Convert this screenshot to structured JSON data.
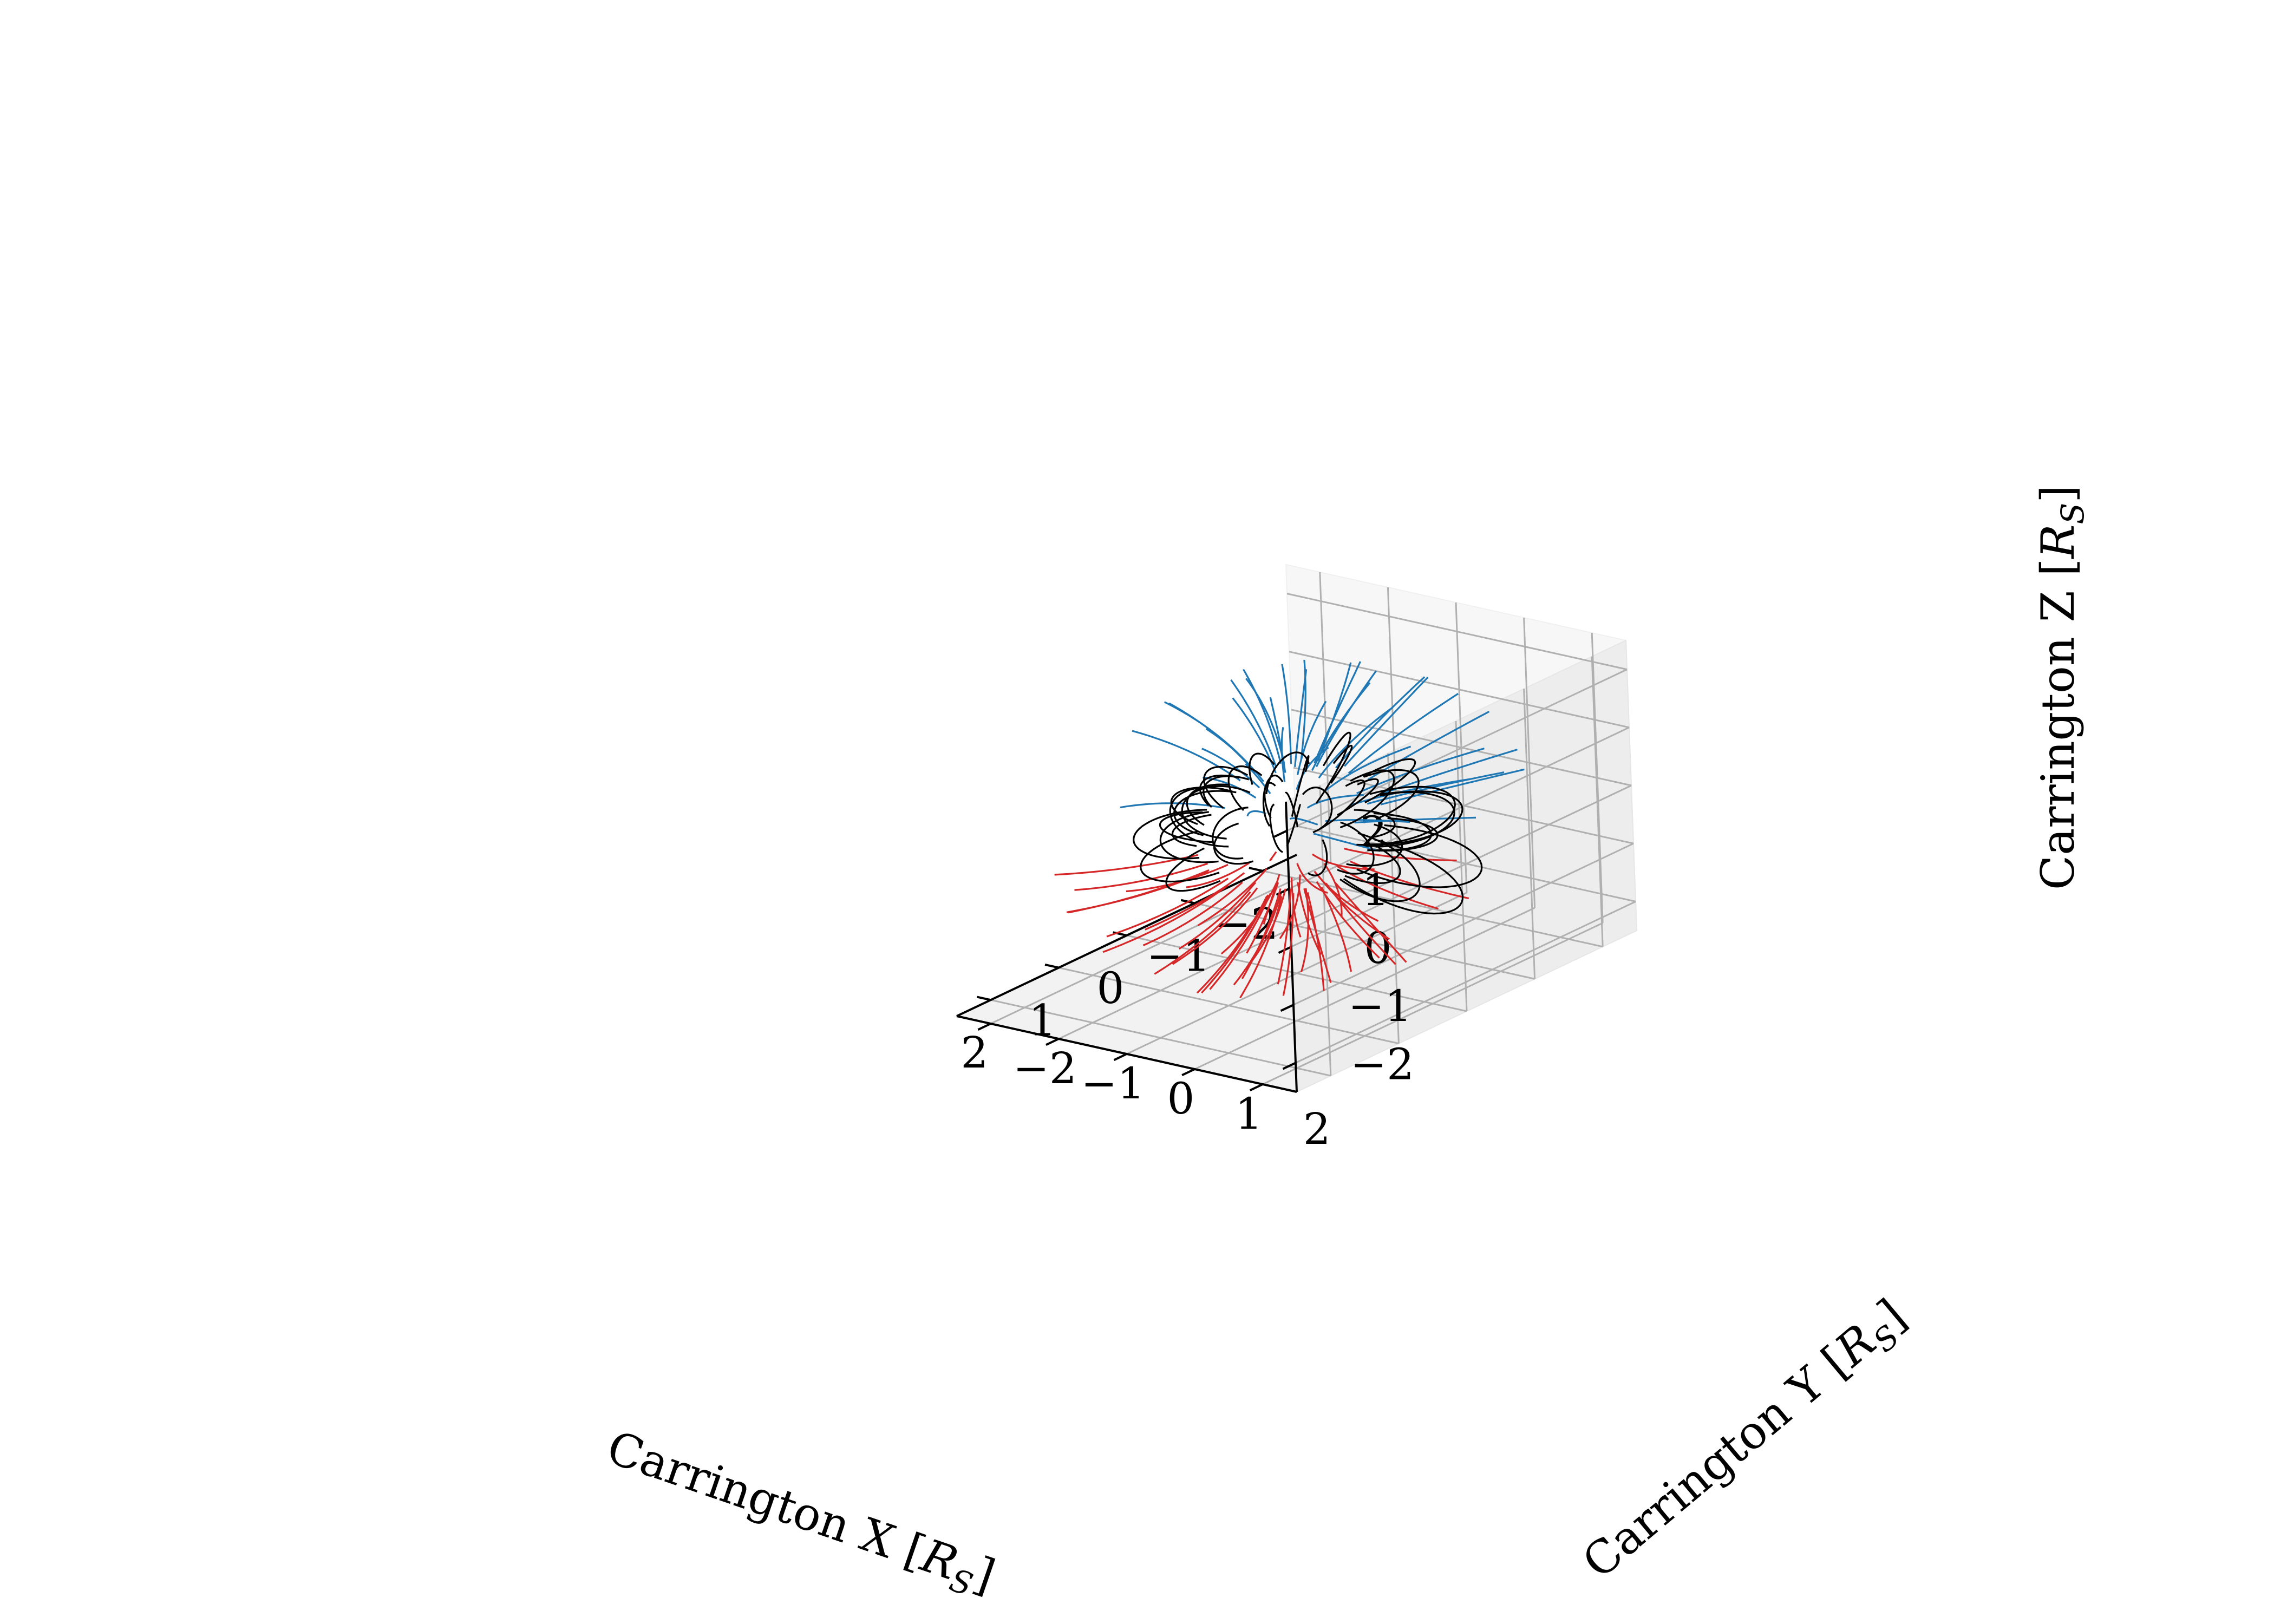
{
  "chart_data": {
    "type": "line3d",
    "title": "",
    "xlabel": "Carrington X [R_S]",
    "ylabel": "Carrington Y [R_S]",
    "zlabel": "Carrington Z [R_S]",
    "xlabel_parts": {
      "prefix": "Carrington X [",
      "sym": "R",
      "sub": "S",
      "suffix": "]"
    },
    "ylabel_parts": {
      "prefix": "Carrington Y [",
      "sym": "R",
      "sub": "S",
      "suffix": "]"
    },
    "zlabel_parts": {
      "prefix": "Carrington Z [",
      "sym": "R",
      "sub": "S",
      "suffix": "]"
    },
    "xlim": [
      -2.5,
      2.5
    ],
    "ylim": [
      -2.5,
      2.5
    ],
    "zlim": [
      -2.5,
      2.5
    ],
    "xticks": [
      -2,
      -1,
      0,
      1,
      2
    ],
    "yticks": [
      -2,
      -1,
      0,
      1,
      2
    ],
    "zticks": [
      -2,
      -1,
      0,
      1,
      2
    ],
    "xtick_labels": [
      "−2",
      "−1",
      "0",
      "1",
      "2"
    ],
    "ytick_labels": [
      "−2",
      "−1",
      "0",
      "1",
      "2"
    ],
    "ztick_labels": [
      "−2",
      "−1",
      "0",
      "1",
      "2"
    ],
    "grid": true,
    "legend": "none",
    "series_colors": {
      "open_positive": "#1f77b4",
      "open_negative": "#d62728",
      "closed": "#000000"
    },
    "source_surface_radius": 2.5,
    "solar_radius": 1.0,
    "open_positive_footpoints": [
      {
        "lat": 62,
        "lon": -150
      },
      {
        "lat": 70,
        "lon": -120
      },
      {
        "lat": 78,
        "lon": -95
      },
      {
        "lat": 66,
        "lon": -75
      },
      {
        "lat": 82,
        "lon": -40
      },
      {
        "lat": 72,
        "lon": -15
      },
      {
        "lat": 86,
        "lon": 10
      },
      {
        "lat": 74,
        "lon": 35
      },
      {
        "lat": 64,
        "lon": 55
      },
      {
        "lat": 80,
        "lon": 75
      },
      {
        "lat": 68,
        "lon": 100
      },
      {
        "lat": 76,
        "lon": 125
      },
      {
        "lat": 60,
        "lon": 150
      },
      {
        "lat": 70,
        "lon": 175
      },
      {
        "lat": 84,
        "lon": -170
      },
      {
        "lat": 58,
        "lon": -60
      },
      {
        "lat": 62,
        "lon": 20
      },
      {
        "lat": 55,
        "lon": 85
      },
      {
        "lat": 52,
        "lon": 140
      },
      {
        "lat": 48,
        "lon": -130
      },
      {
        "lat": 45,
        "lon": 60
      },
      {
        "lat": 40,
        "lon": 110
      },
      {
        "lat": 35,
        "lon": 95
      },
      {
        "lat": 30,
        "lon": 70
      },
      {
        "lat": 25,
        "lon": 130
      },
      {
        "lat": 42,
        "lon": -20
      },
      {
        "lat": 38,
        "lon": 45
      },
      {
        "lat": 50,
        "lon": -100
      },
      {
        "lat": 57,
        "lon": 5
      },
      {
        "lat": 66,
        "lon": -5
      },
      {
        "lat": 73,
        "lon": 150
      },
      {
        "lat": 77,
        "lon": -140
      },
      {
        "lat": 54,
        "lon": -165
      },
      {
        "lat": 46,
        "lon": 170
      },
      {
        "lat": 33,
        "lon": 150
      },
      {
        "lat": 28,
        "lon": 110
      },
      {
        "lat": 20,
        "lon": 90
      },
      {
        "lat": 22,
        "lon": 60
      },
      {
        "lat": 18,
        "lon": 125
      },
      {
        "lat": 44,
        "lon": 25
      }
    ],
    "open_negative_footpoints": [
      {
        "lat": -62,
        "lon": -140
      },
      {
        "lat": -70,
        "lon": -110
      },
      {
        "lat": -78,
        "lon": -85
      },
      {
        "lat": -66,
        "lon": -60
      },
      {
        "lat": -82,
        "lon": -30
      },
      {
        "lat": -72,
        "lon": -5
      },
      {
        "lat": -86,
        "lon": 20
      },
      {
        "lat": -74,
        "lon": 45
      },
      {
        "lat": -64,
        "lon": 65
      },
      {
        "lat": -80,
        "lon": 85
      },
      {
        "lat": -68,
        "lon": 110
      },
      {
        "lat": -76,
        "lon": 135
      },
      {
        "lat": -60,
        "lon": 160
      },
      {
        "lat": -70,
        "lon": -175
      },
      {
        "lat": -84,
        "lon": -160
      },
      {
        "lat": -58,
        "lon": -50
      },
      {
        "lat": -62,
        "lon": 30
      },
      {
        "lat": -55,
        "lon": 95
      },
      {
        "lat": -52,
        "lon": 150
      },
      {
        "lat": -48,
        "lon": -120
      },
      {
        "lat": -45,
        "lon": 70
      },
      {
        "lat": -40,
        "lon": 10
      },
      {
        "lat": -35,
        "lon": -10
      },
      {
        "lat": -30,
        "lon": 20
      },
      {
        "lat": -25,
        "lon": -30
      },
      {
        "lat": -42,
        "lon": -70
      },
      {
        "lat": -38,
        "lon": 55
      },
      {
        "lat": -50,
        "lon": -90
      },
      {
        "lat": -57,
        "lon": 15
      },
      {
        "lat": -66,
        "lon": 5
      },
      {
        "lat": -73,
        "lon": 160
      },
      {
        "lat": -77,
        "lon": -130
      },
      {
        "lat": -54,
        "lon": -155
      },
      {
        "lat": -46,
        "lon": 175
      },
      {
        "lat": -33,
        "lon": 40
      },
      {
        "lat": -28,
        "lon": -50
      },
      {
        "lat": -20,
        "lon": 0
      },
      {
        "lat": -22,
        "lon": 35
      },
      {
        "lat": -18,
        "lon": -20
      },
      {
        "lat": -44,
        "lon": 35
      },
      {
        "lat": -10,
        "lon": 15
      },
      {
        "lat": -12,
        "lon": -40
      },
      {
        "lat": -15,
        "lon": 50
      },
      {
        "lat": -8,
        "lon": 65
      },
      {
        "lat": -5,
        "lon": 30
      }
    ],
    "closed_loops": [
      {
        "lat1": 35,
        "lon1": -160,
        "lat2": -10,
        "lon2": -150,
        "height": 1.9
      },
      {
        "lat1": 25,
        "lon1": -145,
        "lat2": -20,
        "lon2": -135,
        "height": 1.7
      },
      {
        "lat1": 15,
        "lon1": -130,
        "lat2": -25,
        "lon2": -120,
        "height": 1.6
      },
      {
        "lat1": 30,
        "lon1": -115,
        "lat2": -5,
        "lon2": -105,
        "height": 1.5
      },
      {
        "lat1": 40,
        "lon1": -100,
        "lat2": 5,
        "lon2": -90,
        "height": 1.45
      },
      {
        "lat1": 20,
        "lon1": -95,
        "lat2": -30,
        "lon2": -85,
        "height": 1.8
      },
      {
        "lat1": 10,
        "lon1": -75,
        "lat2": -35,
        "lon2": -65,
        "height": 1.55
      },
      {
        "lat1": 45,
        "lon1": -60,
        "lat2": 10,
        "lon2": -55,
        "height": 1.4
      },
      {
        "lat1": 30,
        "lon1": -45,
        "lat2": -15,
        "lon2": -40,
        "height": 1.65
      },
      {
        "lat1": 55,
        "lon1": -30,
        "lat2": 15,
        "lon2": -25,
        "height": 1.5
      },
      {
        "lat1": 60,
        "lon1": -10,
        "lat2": 20,
        "lon2": 0,
        "height": 1.9
      },
      {
        "lat1": 48,
        "lon1": 5,
        "lat2": 5,
        "lon2": 15,
        "height": 1.6
      },
      {
        "lat1": 52,
        "lon1": 30,
        "lat2": 10,
        "lon2": 40,
        "height": 1.45
      },
      {
        "lat1": 58,
        "lon1": 60,
        "lat2": 25,
        "lon2": 65,
        "height": 1.8
      },
      {
        "lat1": 20,
        "lon1": 140,
        "lat2": -30,
        "lon2": 135,
        "height": 1.7
      },
      {
        "lat1": 10,
        "lon1": 155,
        "lat2": -35,
        "lon2": 150,
        "height": 1.9
      },
      {
        "lat1": 5,
        "lon1": 170,
        "lat2": -40,
        "lon2": 165,
        "height": 2.1
      },
      {
        "lat1": 15,
        "lon1": -175,
        "lat2": -30,
        "lon2": -170,
        "height": 1.75
      },
      {
        "lat1": 0,
        "lon1": 120,
        "lat2": -45,
        "lon2": 115,
        "height": 2.2
      },
      {
        "lat1": -5,
        "lon1": 105,
        "lat2": -50,
        "lon2": 100,
        "height": 2.3
      },
      {
        "lat1": 10,
        "lon1": 90,
        "lat2": -40,
        "lon2": 85,
        "height": 2.0
      },
      {
        "lat1": 25,
        "lon1": 80,
        "lat2": -20,
        "lon2": 75,
        "height": 1.6
      },
      {
        "lat1": 5,
        "lon1": -20,
        "lat2": -30,
        "lon2": -15,
        "height": 1.5
      },
      {
        "lat1": 0,
        "lon1": -60,
        "lat2": -40,
        "lon2": -50,
        "height": 1.7
      },
      {
        "lat1": 40,
        "lon1": -150,
        "lat2": 5,
        "lon2": -120,
        "height": 1.35
      },
      {
        "lat1": 35,
        "lon1": -85,
        "lat2": 0,
        "lon2": -70,
        "height": 1.3
      },
      {
        "lat1": 50,
        "lon1": -80,
        "lat2": 20,
        "lon2": -70,
        "height": 1.25
      },
      {
        "lat1": 65,
        "lon1": -50,
        "lat2": 35,
        "lon2": -40,
        "height": 1.3
      },
      {
        "lat1": 70,
        "lon1": 20,
        "lat2": 40,
        "lon2": 30,
        "height": 1.4
      },
      {
        "lat1": 62,
        "lon1": 40,
        "lat2": 30,
        "lon2": 50,
        "height": 1.35
      },
      {
        "lat1": 28,
        "lon1": 165,
        "lat2": -15,
        "lon2": 160,
        "height": 1.5
      },
      {
        "lat1": 12,
        "lon1": 180,
        "lat2": -20,
        "lon2": -165,
        "height": 1.45
      },
      {
        "lat1": -2,
        "lon1": 135,
        "lat2": -38,
        "lon2": 145,
        "height": 1.6
      },
      {
        "lat1": 18,
        "lon1": 110,
        "lat2": -25,
        "lon2": 120,
        "height": 1.55
      },
      {
        "lat1": 30,
        "lon1": 95,
        "lat2": 0,
        "lon2": 100,
        "height": 1.4
      },
      {
        "lat1": -10,
        "lon1": -140,
        "lat2": -45,
        "lon2": -130,
        "height": 1.5
      },
      {
        "lat1": -15,
        "lon1": -100,
        "lat2": -50,
        "lon2": -95,
        "height": 1.6
      },
      {
        "lat1": 22,
        "lon1": -55,
        "lat2": -20,
        "lon2": -75,
        "height": 1.45
      },
      {
        "lat1": 8,
        "lon1": -170,
        "lat2": -35,
        "lon2": -150,
        "height": 1.65
      },
      {
        "lat1": 45,
        "lon1": -175,
        "lat2": 10,
        "lon2": -160,
        "height": 1.4
      },
      {
        "lat1": 38,
        "lon1": 150,
        "lat2": -5,
        "lon2": 175,
        "height": 1.55
      },
      {
        "lat1": -20,
        "lon1": 160,
        "lat2": -55,
        "lon2": 150,
        "height": 1.5
      },
      {
        "lat1": -25,
        "lon1": 125,
        "lat2": -55,
        "lon2": 115,
        "height": 1.45
      },
      {
        "lat1": 15,
        "lon1": 65,
        "lat2": -15,
        "lon2": 55,
        "height": 1.35
      },
      {
        "lat1": 32,
        "lon1": -30,
        "lat2": 0,
        "lon2": -35,
        "height": 1.3
      },
      {
        "lat1": 52,
        "lon1": -120,
        "lat2": 20,
        "lon2": -110,
        "height": 1.3
      }
    ]
  }
}
